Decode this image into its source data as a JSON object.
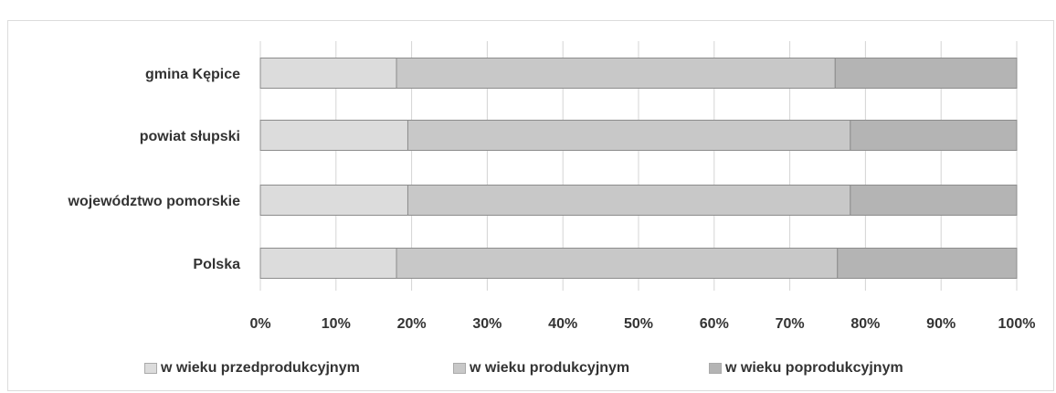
{
  "chart_data": {
    "type": "bar",
    "orientation": "horizontal",
    "stacked": "percent",
    "categories": [
      "gmina Kępice",
      "powiat słupski",
      "województwo pomorskie",
      "Polska"
    ],
    "series": [
      {
        "name": "w wieku przedprodukcyjnym",
        "values": [
          18,
          19.5,
          19.5,
          18
        ],
        "color": "#dcdcdc"
      },
      {
        "name": "w wieku produkcyjnym",
        "values": [
          58,
          58.5,
          58.5,
          58.3
        ],
        "color": "#c8c8c8"
      },
      {
        "name": "w wieku poprodukcyjnym",
        "values": [
          24,
          22,
          22,
          23.7
        ],
        "color": "#b4b4b4"
      }
    ],
    "xlim": [
      0,
      100
    ],
    "xticks": [
      "0%",
      "10%",
      "20%",
      "30%",
      "40%",
      "50%",
      "60%",
      "70%",
      "80%",
      "90%",
      "100%"
    ],
    "grid": "vertical",
    "legend_position": "bottom"
  }
}
